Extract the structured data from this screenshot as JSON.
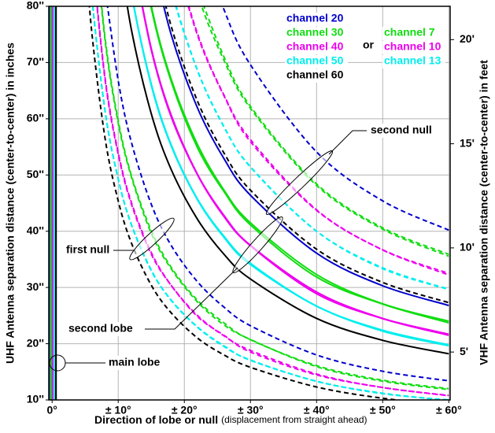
{
  "chart_data": {
    "type": "line",
    "xlabel": "Direction of lobe or null",
    "xlabel_note": "(displacement from straight ahead)",
    "ylabel": "UHF Antenna separation distance (center-to-center) in inches",
    "y2label": "VHF Antenna separation distance (center-to-center) in feet",
    "legend_connector": "or",
    "annotations": [
      "first null",
      "second lobe",
      "second null",
      "main lobe"
    ],
    "grid": true,
    "xlim": [
      -0.5,
      60.2
    ],
    "xticks": [
      {
        "value": 0,
        "label": "0°"
      },
      {
        "value": 10,
        "label": "± 10°"
      },
      {
        "value": 20,
        "label": "± 20°"
      },
      {
        "value": 30,
        "label": "± 30°"
      },
      {
        "value": 40,
        "label": "± 40°"
      },
      {
        "value": 50,
        "label": "± 50°"
      },
      {
        "value": 60,
        "label": "± 60°"
      }
    ],
    "ylim": [
      10,
      80
    ],
    "yticks": [
      {
        "value": 10,
        "label": "10''"
      },
      {
        "value": 20,
        "label": "20''"
      },
      {
        "value": 30,
        "label": "30''"
      },
      {
        "value": 40,
        "label": "40''"
      },
      {
        "value": 50,
        "label": "50''"
      },
      {
        "value": 60,
        "label": "60''"
      },
      {
        "value": 70,
        "label": "70''"
      },
      {
        "value": 80,
        "label": "80''"
      }
    ],
    "y2lim": [
      2.7,
      21.6
    ],
    "y2ticks": [
      {
        "value": 5,
        "label": "5'"
      },
      {
        "value": 10,
        "label": "10'"
      },
      {
        "value": 15,
        "label": "15'"
      },
      {
        "value": 20,
        "label": "20'"
      }
    ],
    "x": [
      5,
      6,
      8,
      10,
      12,
      15,
      18,
      22,
      26,
      30,
      40,
      50,
      60
    ],
    "series": [
      {
        "name": "channel 20",
        "color": "#0000cc",
        "axis": "y",
        "first_null": [
          null,
          null,
          83.3,
          66.8,
          55.8,
          44.8,
          37.5,
          31.0,
          26.5,
          23.2,
          18.0,
          15.1,
          13.4
        ],
        "second_lobe": [
          null,
          null,
          null,
          null,
          null,
          89.6,
          75.0,
          61.9,
          52.9,
          46.4,
          36.1,
          30.3,
          26.8
        ],
        "second_null": [
          null,
          null,
          null,
          null,
          null,
          null,
          null,
          92.9,
          79.4,
          69.6,
          54.1,
          45.4,
          40.2
        ]
      },
      {
        "name": "channel 30",
        "color": "#11dd11",
        "axis": "y",
        "first_null": [
          null,
          99.2,
          74.5,
          59.7,
          49.9,
          40.1,
          33.6,
          27.7,
          23.7,
          20.7,
          16.1,
          13.5,
          12.0
        ],
        "second_lobe": [
          null,
          null,
          null,
          null,
          99.8,
          80.1,
          67.1,
          55.4,
          47.3,
          41.5,
          32.3,
          27.1,
          24.0
        ],
        "second_null": [
          null,
          null,
          null,
          null,
          null,
          null,
          null,
          83.0,
          71.0,
          62.2,
          48.4,
          40.6,
          35.9
        ]
      },
      {
        "name": "channel 40",
        "color": "#ee00ee",
        "axis": "y",
        "first_null": [
          null,
          89.7,
          67.4,
          54.0,
          45.1,
          36.2,
          30.4,
          25.0,
          21.4,
          18.8,
          14.6,
          12.2,
          10.8
        ],
        "second_lobe": [
          null,
          null,
          null,
          null,
          90.2,
          72.5,
          60.7,
          50.1,
          42.8,
          37.5,
          29.2,
          24.5,
          21.7
        ],
        "second_null": [
          null,
          null,
          null,
          null,
          null,
          null,
          91.1,
          75.1,
          64.2,
          56.3,
          43.8,
          36.7,
          32.5
        ]
      },
      {
        "name": "channel 50",
        "color": "#00eeee",
        "axis": "y",
        "first_null": [
          98.3,
          81.9,
          61.5,
          49.3,
          41.2,
          33.1,
          27.7,
          22.9,
          19.5,
          17.1,
          13.3,
          11.2,
          9.9
        ],
        "second_lobe": [
          null,
          null,
          null,
          98.7,
          82.4,
          66.2,
          55.4,
          45.7,
          39.1,
          34.3,
          26.7,
          22.4,
          19.8
        ],
        "second_null": [
          null,
          null,
          null,
          null,
          null,
          99.3,
          83.2,
          68.6,
          58.6,
          51.4,
          40.0,
          33.5,
          29.7
        ]
      },
      {
        "name": "channel 60",
        "color": "#000000",
        "axis": "y",
        "first_null": [
          90.4,
          75.4,
          56.6,
          45.4,
          37.9,
          30.4,
          25.5,
          21.0,
          18.0,
          15.8,
          12.3,
          10.3,
          9.1
        ],
        "second_lobe": [
          null,
          null,
          null,
          90.8,
          75.8,
          60.9,
          51.0,
          42.1,
          35.9,
          31.5,
          24.5,
          20.6,
          18.2
        ],
        "second_null": [
          null,
          null,
          null,
          null,
          null,
          91.3,
          76.5,
          63.1,
          53.9,
          47.3,
          36.8,
          30.9,
          27.3
        ]
      },
      {
        "name": "channel 7",
        "color": "#11dd11",
        "axis": "y2",
        "first_null": [
          null,
          26.6,
          20.0,
          16.0,
          13.4,
          10.7,
          9.0,
          7.4,
          6.3,
          5.6,
          4.3,
          3.6,
          3.2
        ],
        "second_lobe": [
          null,
          null,
          null,
          null,
          26.7,
          21.5,
          18.0,
          14.8,
          12.7,
          11.1,
          8.6,
          7.3,
          6.4
        ],
        "second_null": [
          null,
          null,
          null,
          null,
          null,
          null,
          27.0,
          22.2,
          19.0,
          16.7,
          13.0,
          10.9,
          9.6
        ]
      },
      {
        "name": "channel 10",
        "color": "#ee00ee",
        "axis": "y2",
        "first_null": [
          null,
          24.1,
          18.1,
          14.5,
          12.1,
          9.7,
          8.2,
          6.7,
          5.8,
          5.0,
          3.9,
          3.3,
          2.9
        ],
        "second_lobe": [
          null,
          null,
          null,
          null,
          24.3,
          19.5,
          16.3,
          13.5,
          11.5,
          10.1,
          7.8,
          6.6,
          5.8
        ],
        "second_null": [
          null,
          null,
          null,
          null,
          null,
          null,
          24.5,
          20.2,
          17.3,
          15.1,
          11.8,
          9.9,
          8.7
        ]
      },
      {
        "name": "channel 13",
        "color": "#00eeee",
        "axis": "y2",
        "first_null": [
          26.5,
          22.1,
          16.6,
          13.3,
          11.1,
          8.9,
          7.5,
          6.2,
          5.3,
          4.6,
          3.6,
          3.0,
          2.7
        ],
        "second_lobe": [
          null,
          null,
          null,
          26.6,
          22.2,
          17.8,
          14.9,
          12.3,
          10.5,
          9.2,
          7.2,
          6.0,
          5.3
        ],
        "second_null": [
          null,
          null,
          null,
          null,
          null,
          26.8,
          22.4,
          18.5,
          15.8,
          13.9,
          10.8,
          9.0,
          8.0
        ]
      }
    ]
  }
}
